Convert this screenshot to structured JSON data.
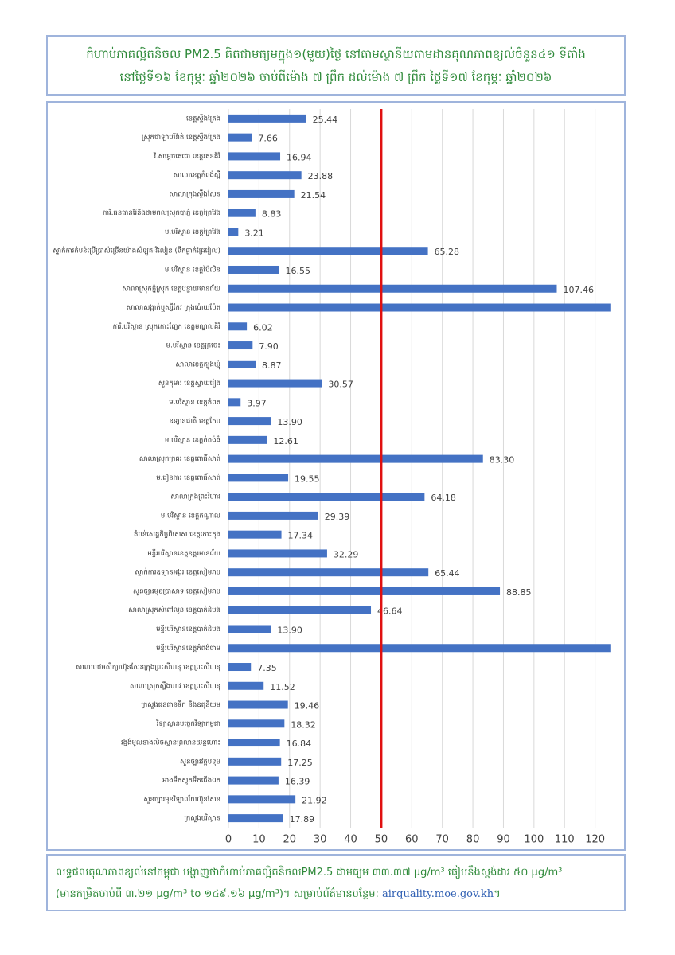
{
  "chart_data": {
    "type": "barh",
    "title": [
      "កំហាប់ភាគល្អិតនិចល PM2.5 គិតជាមធ្យមក្នុង១(មួយ)ថ្ងៃ នៅតាមស្ថានីយតាមដានគុណភាពខ្យល់ចំនួន៤១ ទីតាំង",
      "នៅថ្ងៃទី១៦ ខែកុម្ភៈ ឆ្នាំ២០២៦ ចាប់ពីម៉ោង ៧ ព្រឹក ដល់ម៉ោង ៧ ព្រឹក ថ្ងៃទី១៧ ខែកុម្ភៈ ឆ្នាំ២០២៦"
    ],
    "categories": [
      "ខេត្តស្ទឹងត្រែង",
      "ស្រុកថាឡាបរិវ៉ាត់ ខេត្តស្ទឹងត្រែង",
      "វិ.សម្តេចតេជោ ខេត្តរតនគិរី",
      "សាលាខេត្តកំពង់ស្ពឺ",
      "សាលាក្រុងស្ទឹងសែន",
      "ការិ.ធនធានរ៉ែនិងថាមពលស្រុកបាភ្នំ ខេត្តព្រៃវែង",
      "ម.បរិស្ថាន ខេត្តព្រៃវែង",
      "ស្នាក់ការតំបន់ប្រើប្រាស់ច្រើនយ៉ាងសំឡូត-វិលៀន (ទឹកធ្លាក់ជ្រៃរៀល)",
      "ម.បរិស្ថាន ខេត្តប៉ៃលិន",
      "សាលាស្រុកភ្នំស្រុក ខេត្តបន្ទាយមានជ័យ",
      "សាលាសង្កាត់ឬស្សីកែវ ក្រុងប៉ោយប៉ែត",
      "ការិ.បរិស្ថាន ស្រុកកោះញែក ខេត្តមណ្ឌលគិរី",
      "ម.បរិស្ថាន ខេត្តក្រចេះ",
      "សាលាខេត្តត្បូងឃ្មុំ",
      "សួនកុមារ ខេត្តស្វាយរៀង",
      "ម.បរិស្ថាន ខេត្តកំពត",
      "ឧទ្យានជាតិ ខេត្តកែប",
      "ម.បរិស្ថាន ខេត្តកំពង់ធំ",
      "សាលាស្រុកក្រគរ ខេត្តពោធិ៍សាត់",
      "ម.រៀនការ ខេត្តពោធិ៍សាត់",
      "សាលាក្រុងព្រះវិហារ",
      "ម.បរិស្ថាន ខេត្តកណ្ដាល",
      "តំបន់សេដ្ឋកិច្ចពិសេស ខេត្តកោះកុង",
      "មន្ទីរបរិស្ថានខេត្តឧត្តរមានជ័យ",
      "ស្នាក់ការឧទ្យានអង្គរ ខេត្តសៀមរាប",
      "សួនច្បារមុខប្រាសាទ ខេត្តសៀមរាប",
      "សាលាស្រុកសំពៅលូន ខេត្តបាត់ដំបង",
      "មន្ទីរបរិស្ថានខេត្តបាត់ដំបង",
      "មន្ទីរបរិស្ថានខេត្តកំពង់ចាម",
      "សាលាបឋមសិក្សាហ៊ុនសែនក្រុងព្រះសីហនុ ខេត្តព្រះសីហនុ",
      "សាលាស្រុកស្ទឹងហាវ ខេត្តព្រះសីហនុ",
      "ក្រសួងធនធានទឹក និងឧតុនិយម",
      "វិទ្យាស្ថានបច្ចេកវិទ្យាកម្ពុជា",
      "រង្វង់មូលខាងលិចស្ពានព្រលានយន្តហោះ",
      "សួនច្បារវត្តបទុម",
      "អាងទឹកស្តុកទឹកជើងឯក",
      "សួនច្បារមុខវិទ្យាល័យហ៊ុនសែន",
      "ក្រសួងបរិស្ថាន"
    ],
    "values": [
      25.44,
      7.66,
      16.94,
      23.88,
      21.54,
      8.83,
      3.21,
      65.28,
      16.55,
      107.46,
      125,
      6.02,
      7.9,
      8.87,
      30.57,
      3.97,
      13.9,
      12.61,
      83.3,
      19.55,
      64.18,
      29.39,
      17.34,
      32.29,
      65.44,
      88.85,
      46.64,
      13.9,
      125,
      7.35,
      11.52,
      19.46,
      18.32,
      16.84,
      17.25,
      16.39,
      21.92,
      17.89
    ],
    "value_labels": [
      "25.44",
      "7.66",
      "16.94",
      "23.88",
      "21.54",
      "8.83",
      "3.21",
      "65.28",
      "16.55",
      "107.46",
      null,
      "6.02",
      "7.90",
      "8.87",
      "30.57",
      "3.97",
      "13.90",
      "12.61",
      "83.30",
      "19.55",
      "64.18",
      "29.39",
      "17.34",
      "32.29",
      "65.44",
      "88.85",
      "46.64",
      "13.90",
      null,
      "7.35",
      "11.52",
      "19.46",
      "18.32",
      "16.84",
      "17.25",
      "16.39",
      "21.92",
      "17.89"
    ],
    "color": "#4472c4",
    "xlim": [
      0,
      130
    ],
    "xticks": [
      0,
      10,
      20,
      30,
      40,
      50,
      60,
      70,
      80,
      90,
      100,
      110,
      120
    ],
    "grid": true,
    "threshold": 50,
    "threshold_color": "#e01010",
    "footer": [
      "លទ្ធផលគុណភាពខ្យល់នៅកម្ពុជា បង្ហាញថាកំហាប់ភាគល្អិតនិចលPM2.5 ជាមធ្យម ៣៣.៣៧ µg/m³ ធៀបនឹងស្តង់ដារ ៥០ µg/m³",
      "(មានកម្រិតចាប់ពី ៣.២១ µg/m³ to ១៤៩.១៦ µg/m³)។ សម្រាប់ព័ត៌មានបន្ថែម: "
    ],
    "link": "airquality.moe.gov.kh",
    "link_tail": "។"
  }
}
